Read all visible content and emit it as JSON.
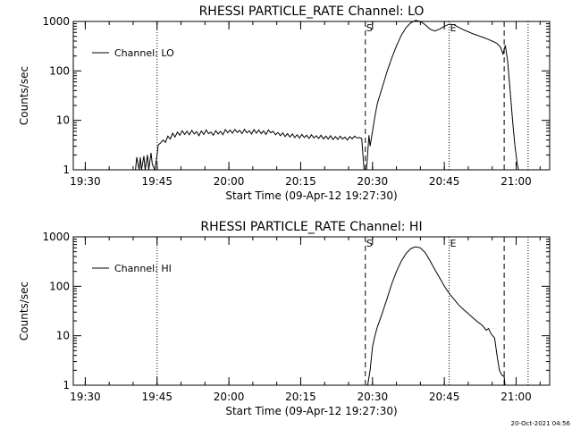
{
  "footer_timestamp": "20-Oct-2021 04:56",
  "chart_data": [
    {
      "type": "line",
      "title": "RHESSI PARTICLE_RATE Channel: LO",
      "xlabel": "Start Time (09-Apr-12 19:27:30)",
      "ylabel": "Counts/sec",
      "yscale": "log",
      "ylim": [
        1,
        1000
      ],
      "xlim": [
        "19:27:30",
        "21:07:00"
      ],
      "x_ticks": [
        "19:30",
        "19:45",
        "20:00",
        "20:15",
        "20:30",
        "20:45",
        "21:00"
      ],
      "y_ticks": [
        "1",
        "10",
        "100",
        "1000"
      ],
      "legend": {
        "label": "Channel: LO",
        "position": "top-left"
      },
      "markers": [
        {
          "label": "S",
          "time": "20:28:30",
          "style": "dashed"
        },
        {
          "label": "E",
          "time": "20:46:00",
          "style": "dotted"
        },
        {
          "label": "",
          "time": "19:45:00",
          "style": "dotted"
        },
        {
          "label": "",
          "time": "20:57:30",
          "style": "dashed"
        },
        {
          "label": "",
          "time": "21:02:30",
          "style": "dotted"
        }
      ],
      "series": [
        {
          "name": "Channel: LO",
          "points": [
            [
              "19:27:45",
              1.0
            ],
            [
              "19:40:30",
              1.0
            ],
            [
              "19:40:45",
              1.8
            ],
            [
              "19:41:15",
              1.0
            ],
            [
              "19:41:30",
              1.8
            ],
            [
              "19:41:45",
              1.0
            ],
            [
              "19:42:15",
              1.9
            ],
            [
              "19:42:30",
              1.0
            ],
            [
              "19:43:00",
              2.0
            ],
            [
              "19:43:15",
              1.0
            ],
            [
              "19:43:45",
              2.2
            ],
            [
              "19:44:00",
              1.3
            ],
            [
              "19:44:30",
              1.0
            ],
            [
              "19:45:00",
              2.0
            ],
            [
              "19:45:15",
              3.2
            ],
            [
              "19:45:45",
              3.5
            ],
            [
              "19:46:15",
              4.0
            ],
            [
              "19:46:45",
              3.6
            ],
            [
              "19:47:15",
              4.8
            ],
            [
              "19:47:45",
              4.2
            ],
            [
              "19:48:15",
              5.5
            ],
            [
              "19:48:45",
              4.6
            ],
            [
              "19:49:15",
              5.8
            ],
            [
              "19:49:45",
              5.0
            ],
            [
              "19:50:15",
              6.2
            ],
            [
              "19:50:45",
              5.2
            ],
            [
              "19:51:15",
              6.0
            ],
            [
              "19:51:45",
              5.1
            ],
            [
              "19:52:15",
              6.3
            ],
            [
              "19:52:45",
              5.3
            ],
            [
              "19:53:15",
              5.9
            ],
            [
              "19:53:45",
              4.9
            ],
            [
              "19:54:15",
              6.1
            ],
            [
              "19:54:45",
              5.2
            ],
            [
              "19:55:15",
              6.4
            ],
            [
              "19:55:45",
              5.4
            ],
            [
              "19:56:15",
              5.8
            ],
            [
              "19:56:45",
              5.0
            ],
            [
              "19:57:15",
              6.2
            ],
            [
              "19:57:45",
              5.3
            ],
            [
              "19:58:15",
              6.0
            ],
            [
              "19:58:45",
              5.1
            ],
            [
              "19:59:15",
              6.5
            ],
            [
              "19:59:45",
              5.6
            ],
            [
              "20:00:15",
              6.4
            ],
            [
              "20:00:45",
              5.5
            ],
            [
              "20:01:15",
              6.6
            ],
            [
              "20:01:45",
              5.7
            ],
            [
              "20:02:15",
              6.3
            ],
            [
              "20:02:45",
              5.4
            ],
            [
              "20:03:15",
              6.6
            ],
            [
              "20:03:45",
              5.6
            ],
            [
              "20:04:15",
              6.2
            ],
            [
              "20:04:45",
              5.3
            ],
            [
              "20:05:15",
              6.5
            ],
            [
              "20:05:45",
              5.5
            ],
            [
              "20:06:15",
              6.4
            ],
            [
              "20:06:45",
              5.4
            ],
            [
              "20:07:15",
              6.1
            ],
            [
              "20:07:45",
              5.2
            ],
            [
              "20:08:15",
              6.4
            ],
            [
              "20:08:45",
              5.6
            ],
            [
              "20:09:15",
              6.0
            ],
            [
              "20:09:45",
              5.1
            ],
            [
              "20:10:15",
              5.7
            ],
            [
              "20:10:45",
              4.9
            ],
            [
              "20:11:15",
              5.6
            ],
            [
              "20:11:45",
              4.7
            ],
            [
              "20:12:15",
              5.4
            ],
            [
              "20:12:45",
              4.6
            ],
            [
              "20:13:15",
              5.3
            ],
            [
              "20:13:45",
              4.5
            ],
            [
              "20:14:15",
              5.1
            ],
            [
              "20:14:45",
              4.4
            ],
            [
              "20:15:15",
              5.2
            ],
            [
              "20:15:45",
              4.5
            ],
            [
              "20:16:15",
              5.0
            ],
            [
              "20:16:45",
              4.3
            ],
            [
              "20:17:15",
              5.1
            ],
            [
              "20:17:45",
              4.4
            ],
            [
              "20:18:15",
              4.9
            ],
            [
              "20:18:45",
              4.3
            ],
            [
              "20:19:15",
              5.0
            ],
            [
              "20:19:45",
              4.2
            ],
            [
              "20:20:15",
              4.8
            ],
            [
              "20:20:45",
              4.2
            ],
            [
              "20:21:15",
              4.9
            ],
            [
              "20:21:45",
              4.1
            ],
            [
              "20:22:15",
              4.7
            ],
            [
              "20:22:45",
              4.1
            ],
            [
              "20:23:15",
              4.8
            ],
            [
              "20:23:45",
              4.2
            ],
            [
              "20:24:15",
              4.6
            ],
            [
              "20:24:45",
              4.0
            ],
            [
              "20:25:15",
              4.7
            ],
            [
              "20:25:45",
              4.2
            ],
            [
              "20:26:15",
              4.8
            ],
            [
              "20:26:45",
              4.4
            ],
            [
              "20:27:15",
              4.5
            ],
            [
              "20:27:45",
              4.3
            ],
            [
              "20:28:00",
              2.0
            ],
            [
              "20:28:15",
              1.0
            ],
            [
              "20:28:45",
              1.0
            ],
            [
              "20:29:15",
              5.0
            ],
            [
              "20:29:30",
              3.0
            ],
            [
              "20:30:00",
              6.0
            ],
            [
              "20:30:30",
              12
            ],
            [
              "20:31:00",
              22
            ],
            [
              "20:32:00",
              45
            ],
            [
              "20:33:00",
              95
            ],
            [
              "20:34:00",
              180
            ],
            [
              "20:35:00",
              320
            ],
            [
              "20:36:00",
              520
            ],
            [
              "20:37:00",
              750
            ],
            [
              "20:38:00",
              940
            ],
            [
              "20:39:00",
              1050
            ],
            [
              "20:40:00",
              1000
            ],
            [
              "20:41:00",
              860
            ],
            [
              "20:42:00",
              700
            ],
            [
              "20:43:00",
              640
            ],
            [
              "20:44:00",
              700
            ],
            [
              "20:45:00",
              800
            ],
            [
              "20:46:00",
              880
            ],
            [
              "20:47:00",
              860
            ],
            [
              "20:48:00",
              760
            ],
            [
              "20:49:00",
              680
            ],
            [
              "20:50:00",
              620
            ],
            [
              "20:51:00",
              560
            ],
            [
              "20:52:00",
              520
            ],
            [
              "20:53:00",
              480
            ],
            [
              "20:54:00",
              440
            ],
            [
              "20:55:00",
              400
            ],
            [
              "20:56:00",
              360
            ],
            [
              "20:56:45",
              300
            ],
            [
              "20:57:15",
              220
            ],
            [
              "20:57:45",
              330
            ],
            [
              "20:58:15",
              150
            ],
            [
              "20:58:45",
              40
            ],
            [
              "20:59:15",
              10
            ],
            [
              "20:59:45",
              3
            ],
            [
              "21:00:15",
              1.3
            ],
            [
              "21:00:30",
              1.0
            ],
            [
              "21:07:00",
              1.0
            ]
          ]
        }
      ]
    },
    {
      "type": "line",
      "title": "RHESSI PARTICLE_RATE Channel: HI",
      "xlabel": "Start Time (09-Apr-12 19:27:30)",
      "ylabel": "Counts/sec",
      "yscale": "log",
      "ylim": [
        1,
        1000
      ],
      "xlim": [
        "19:27:30",
        "21:07:00"
      ],
      "x_ticks": [
        "19:30",
        "19:45",
        "20:00",
        "20:15",
        "20:30",
        "20:45",
        "21:00"
      ],
      "y_ticks": [
        "1",
        "10",
        "100",
        "1000"
      ],
      "legend": {
        "label": "Channel: HI",
        "position": "top-left"
      },
      "markers": [
        {
          "label": "S",
          "time": "20:28:30",
          "style": "dashed"
        },
        {
          "label": "E",
          "time": "20:46:00",
          "style": "dotted"
        },
        {
          "label": "",
          "time": "19:45:00",
          "style": "dotted"
        },
        {
          "label": "",
          "time": "20:57:30",
          "style": "dashed"
        },
        {
          "label": "",
          "time": "21:02:30",
          "style": "dotted"
        }
      ],
      "series": [
        {
          "name": "Channel: HI",
          "points": [
            [
              "20:29:00",
              1.0
            ],
            [
              "20:29:30",
              2.0
            ],
            [
              "20:30:00",
              6.0
            ],
            [
              "20:30:30",
              10
            ],
            [
              "20:31:00",
              15
            ],
            [
              "20:32:00",
              28
            ],
            [
              "20:33:00",
              55
            ],
            [
              "20:34:00",
              110
            ],
            [
              "20:35:00",
              200
            ],
            [
              "20:36:00",
              320
            ],
            [
              "20:37:00",
              460
            ],
            [
              "20:38:00",
              580
            ],
            [
              "20:39:00",
              630
            ],
            [
              "20:40:00",
              600
            ],
            [
              "20:41:00",
              480
            ],
            [
              "20:42:00",
              330
            ],
            [
              "20:43:00",
              220
            ],
            [
              "20:44:00",
              150
            ],
            [
              "20:45:00",
              100
            ],
            [
              "20:46:00",
              72
            ],
            [
              "20:47:00",
              55
            ],
            [
              "20:48:00",
              42
            ],
            [
              "20:49:00",
              34
            ],
            [
              "20:50:00",
              28
            ],
            [
              "20:51:00",
              23
            ],
            [
              "20:52:00",
              19
            ],
            [
              "20:53:00",
              16
            ],
            [
              "20:53:45",
              13
            ],
            [
              "20:54:15",
              14
            ],
            [
              "20:54:45",
              11
            ],
            [
              "20:55:30",
              9
            ],
            [
              "20:56:00",
              4
            ],
            [
              "20:56:30",
              2
            ],
            [
              "20:57:00",
              1.6
            ],
            [
              "20:57:30",
              1.5
            ],
            [
              "20:57:40",
              1.0
            ]
          ]
        }
      ]
    }
  ]
}
